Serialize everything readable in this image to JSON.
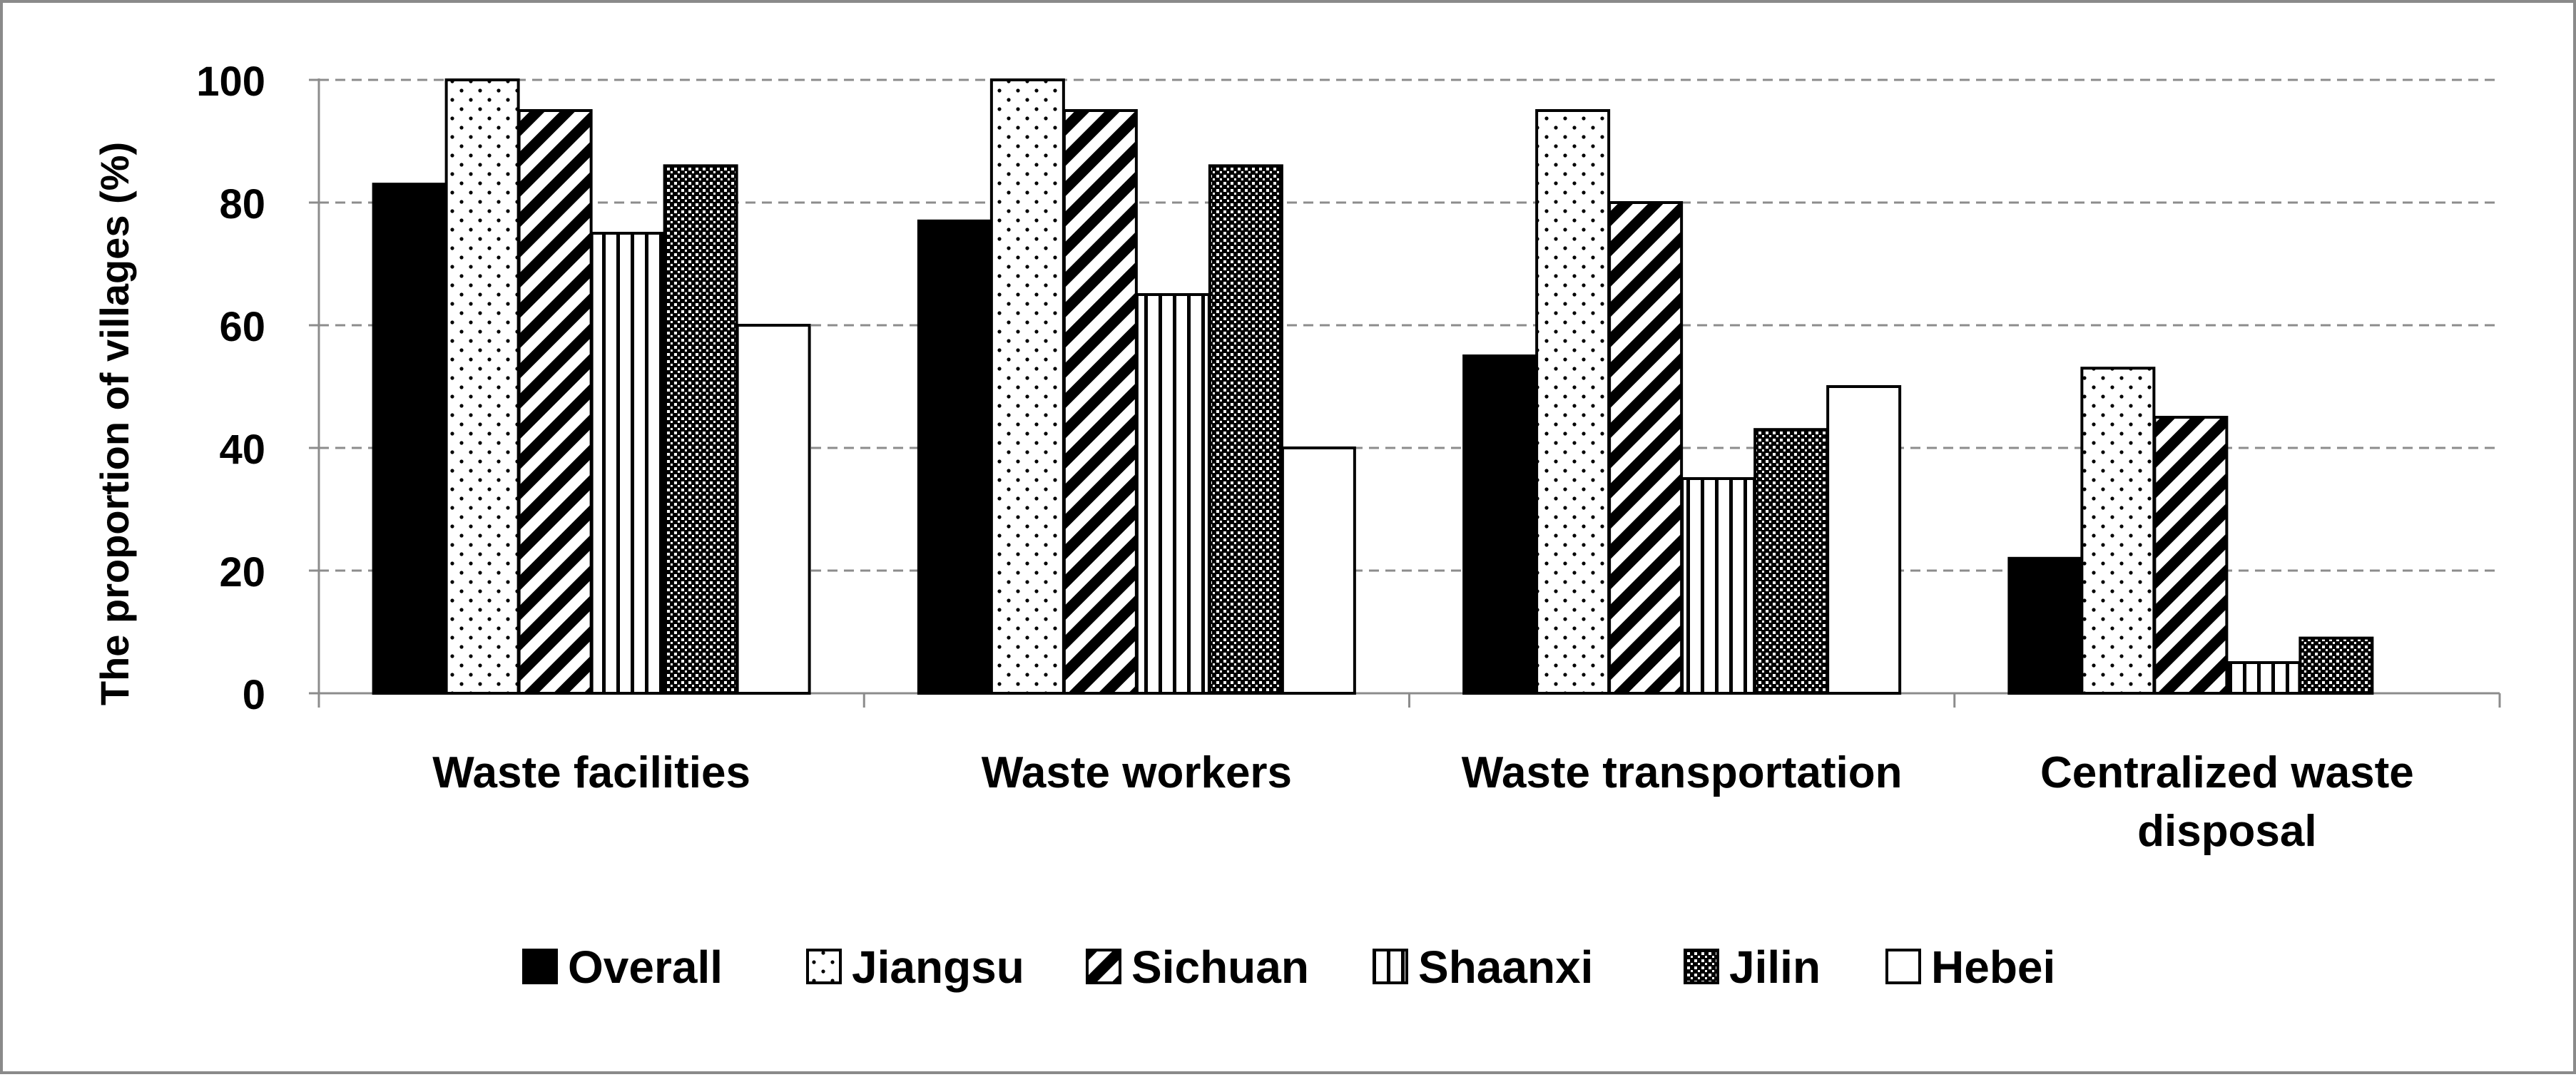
{
  "chart_data": {
    "type": "bar",
    "title": "",
    "ylabel": "The proportion of villages (%)",
    "xlabel": "",
    "ylim": [
      0,
      100
    ],
    "yticks": [
      0,
      20,
      40,
      60,
      80,
      100
    ],
    "grid": true,
    "legend_position": "bottom",
    "categories": [
      [
        "Waste facilities"
      ],
      [
        "Waste workers"
      ],
      [
        "Waste transportation"
      ],
      [
        "Centralized waste",
        "disposal"
      ]
    ],
    "series": [
      {
        "name": "Overall",
        "pattern": "solid",
        "values": [
          83,
          77,
          55,
          22
        ]
      },
      {
        "name": "Jiangsu",
        "pattern": "dots",
        "values": [
          100,
          100,
          95,
          53
        ]
      },
      {
        "name": "Sichuan",
        "pattern": "diagonal",
        "values": [
          95,
          95,
          80,
          45
        ]
      },
      {
        "name": "Shaanxi",
        "pattern": "vertical",
        "values": [
          75,
          65,
          35,
          5
        ]
      },
      {
        "name": "Jilin",
        "pattern": "checker",
        "values": [
          86,
          86,
          43,
          9
        ]
      },
      {
        "name": "Hebei",
        "pattern": "white",
        "values": [
          60,
          40,
          50,
          0
        ]
      }
    ]
  }
}
